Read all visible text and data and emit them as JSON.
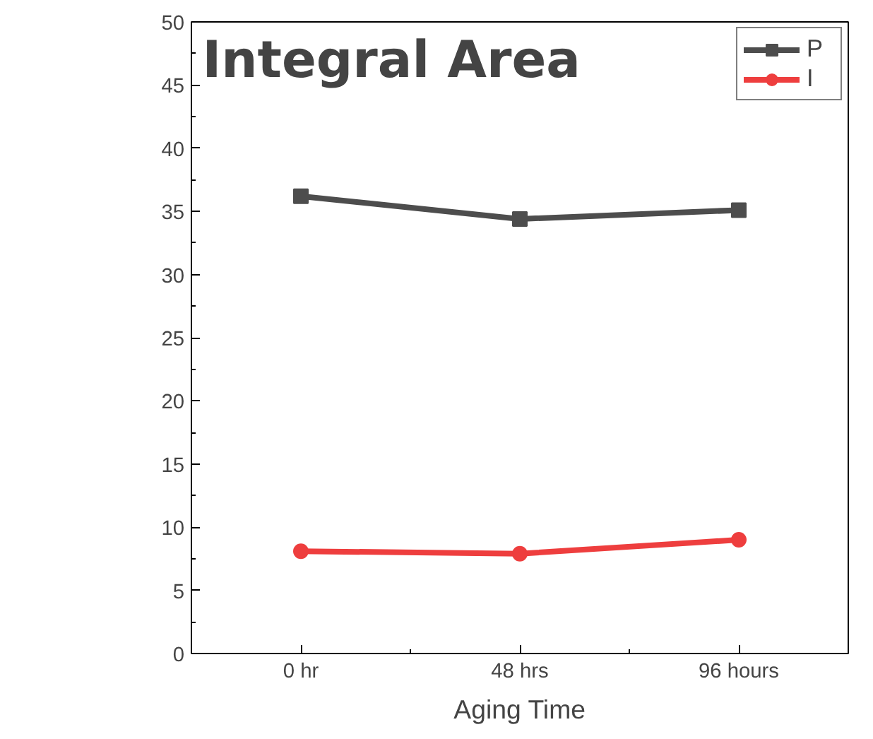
{
  "chart_data": {
    "type": "line",
    "title": "Integral Area",
    "xlabel": "Aging Time",
    "categories": [
      "0 hr",
      "48 hrs",
      "96 hours"
    ],
    "series": [
      {
        "name": "P",
        "color": "#4d4d4d",
        "values": [
          36.2,
          34.4,
          35.1
        ],
        "marker": "square"
      },
      {
        "name": "I",
        "color": "#ee3e3e",
        "values": [
          8.1,
          7.9,
          9.0
        ],
        "marker": "circle"
      }
    ],
    "ylim": [
      0,
      50
    ],
    "yticks": [
      0,
      5,
      10,
      15,
      20,
      25,
      30,
      35,
      40,
      45,
      50
    ],
    "grid": false,
    "legend": "top right",
    "line_style": "solid"
  }
}
